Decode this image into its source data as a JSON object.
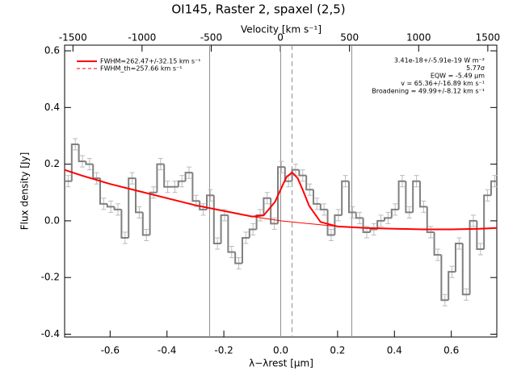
{
  "chart_data": {
    "type": "step",
    "title": "OI145, Raster 2, spaxel (2,5)",
    "xlabel": "λ−λrest [μm]",
    "ylabel": "Flux density [Jy]",
    "x2label": "Velocity [km s⁻¹]",
    "xlim": [
      -0.76,
      0.76
    ],
    "ylim": [
      -0.41,
      0.62
    ],
    "x2lim": [
      -1560,
      1565
    ],
    "xticks": [
      -0.6,
      -0.4,
      -0.2,
      {
        "value": 0,
        "label": "0.0"
      },
      0.2,
      0.4,
      0.6
    ],
    "yticks": [
      -0.4,
      -0.2,
      {
        "value": 0,
        "label": "0.0"
      },
      0.2,
      0.4,
      0.6
    ],
    "x2ticks": [
      -1500,
      -1000,
      -500,
      0,
      500,
      1000,
      1500
    ],
    "bin_width": 0.025,
    "x": [
      -0.7475,
      -0.7225,
      -0.6975,
      -0.6725,
      -0.6475,
      -0.6225,
      -0.5975,
      -0.5725,
      -0.5475,
      -0.5225,
      -0.4975,
      -0.4725,
      -0.4475,
      -0.4225,
      -0.3975,
      -0.3725,
      -0.3475,
      -0.3225,
      -0.2975,
      -0.2725,
      -0.2475,
      -0.2225,
      -0.1975,
      -0.1725,
      -0.1475,
      -0.1225,
      -0.0975,
      -0.0725,
      -0.0475,
      -0.0225,
      0.0025,
      0.0275,
      0.0525,
      0.0775,
      0.1025,
      0.1275,
      0.1525,
      0.1775,
      0.2025,
      0.2275,
      0.2525,
      0.2775,
      0.3025,
      0.3275,
      0.3525,
      0.3775,
      0.4025,
      0.4275,
      0.4525,
      0.4775,
      0.5025,
      0.5275,
      0.5525,
      0.5775,
      0.6025,
      0.6275,
      0.6525,
      0.6775,
      0.7025,
      0.7275,
      0.7525
    ],
    "values": [
      0.14,
      0.27,
      0.21,
      0.2,
      0.15,
      0.06,
      0.05,
      0.04,
      -0.06,
      0.15,
      0.03,
      -0.05,
      0.1,
      0.2,
      0.12,
      0.12,
      0.14,
      0.17,
      0.07,
      0.04,
      0.09,
      -0.08,
      0.02,
      -0.11,
      -0.15,
      -0.06,
      -0.03,
      0.02,
      0.08,
      -0.01,
      0.19,
      0.14,
      0.18,
      0.16,
      0.11,
      0.06,
      0.04,
      -0.05,
      0.02,
      0.14,
      0.03,
      0.01,
      -0.04,
      -0.03,
      0.0,
      0.01,
      0.04,
      0.14,
      0.03,
      0.14,
      0.05,
      -0.04,
      -0.12,
      -0.28,
      -0.18,
      -0.08,
      -0.26,
      0.0,
      -0.1,
      0.09,
      0.14
    ],
    "error": 0.02,
    "color": "#808080",
    "fit": {
      "name": "FWHM=262.47+/-32.15 km s⁻¹",
      "color": "#ff0000",
      "x": [
        -0.76,
        -0.7,
        -0.6,
        -0.5,
        -0.4,
        -0.3,
        -0.2,
        -0.1,
        -0.06,
        -0.02,
        0.0,
        0.02,
        0.04,
        0.06,
        0.08,
        0.1,
        0.14,
        0.2,
        0.3,
        0.4,
        0.5,
        0.6,
        0.7,
        0.76
      ],
      "values": [
        0.18,
        0.16,
        0.13,
        0.105,
        0.08,
        0.055,
        0.035,
        0.015,
        0.019,
        0.067,
        0.111,
        0.154,
        0.171,
        0.15,
        0.103,
        0.053,
        -0.004,
        -0.02,
        -0.025,
        -0.028,
        -0.03,
        -0.03,
        -0.028,
        -0.025
      ]
    },
    "baseline": {
      "x": [
        -0.76,
        -0.7,
        -0.6,
        -0.5,
        -0.4,
        -0.3,
        -0.2,
        -0.1,
        0,
        0.1,
        0.2,
        0.3,
        0.4,
        0.5,
        0.6,
        0.7,
        0.76
      ],
      "values": [
        0.18,
        0.16,
        0.13,
        0.105,
        0.08,
        0.055,
        0.035,
        0.015,
        0.0,
        -0.01,
        -0.02,
        -0.025,
        -0.028,
        -0.03,
        -0.03,
        -0.028,
        -0.025
      ]
    },
    "fwhm_th_label": "FWHM_th=257.66 km s⁻¹",
    "vlines": [
      -0.25,
      0,
      0.25
    ],
    "dashed_vline": 0.04,
    "annotations": [
      "3.41e-18+/-5.91e-19 W m⁻²",
      "5.77σ",
      "EQW = -5.49 μm",
      "v = 65.36+/-16.89 km s⁻¹",
      "Broadening = 49.99+/-8.12 km s⁻¹"
    ]
  }
}
